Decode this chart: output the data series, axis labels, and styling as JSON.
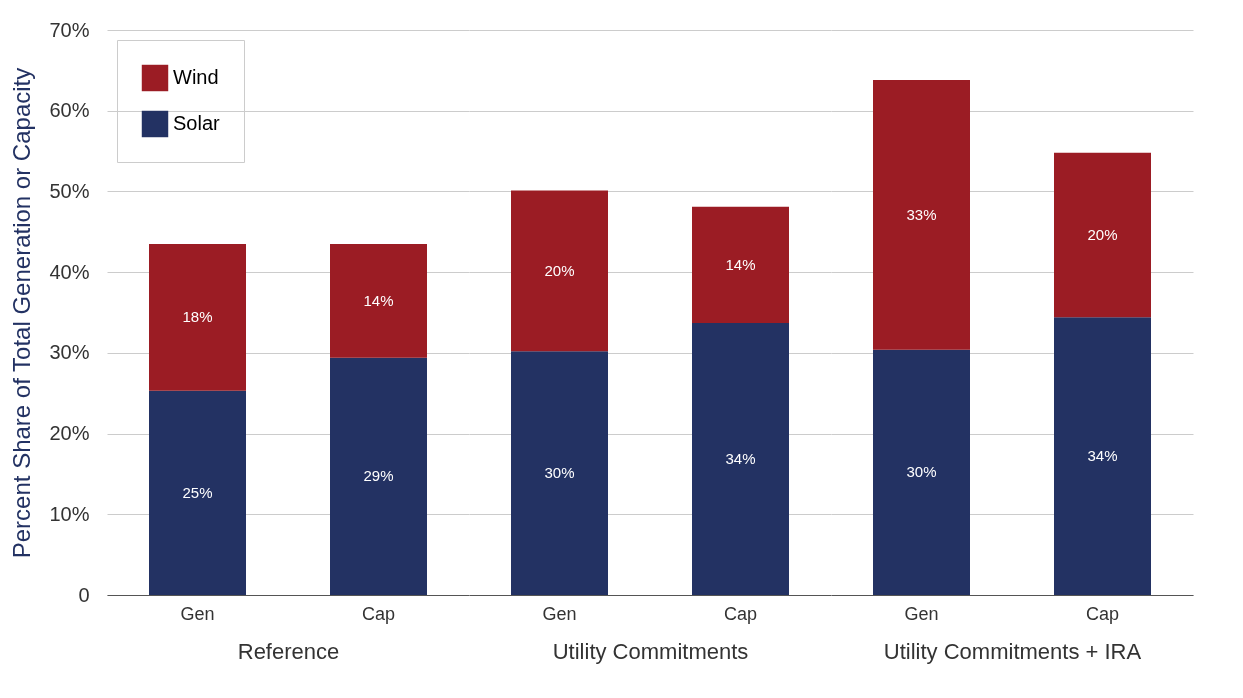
{
  "chart_data": {
    "type": "bar",
    "stacked": true,
    "ylabel": "Percent Share of Total Generation or Capacity",
    "categories": [
      "Gen",
      "Cap",
      "Gen",
      "Cap",
      "Gen",
      "Cap"
    ],
    "annotations": [
      "Reference",
      "Utility Commitments",
      "Utility Commitments + IRA"
    ],
    "series": [
      {
        "name": "Solar",
        "color": "#233263",
        "values": [
          25.3,
          29.4,
          30.2,
          33.7,
          30.4,
          34.4
        ],
        "value_labels": [
          "25%",
          "29%",
          "30%",
          "34%",
          "30%",
          "34%"
        ]
      },
      {
        "name": "Wind",
        "color": "#9b1c24",
        "values": [
          18.2,
          14.1,
          19.9,
          14.4,
          33.4,
          20.4
        ],
        "value_labels": [
          "18%",
          "14%",
          "20%",
          "14%",
          "33%",
          "20%"
        ]
      }
    ],
    "ylim": [
      0,
      70
    ],
    "yticks": [
      0,
      {
        "value": 10,
        "label": "10%"
      },
      {
        "value": 20,
        "label": "20%"
      },
      {
        "value": 30,
        "label": "30%"
      },
      {
        "value": 40,
        "label": "40%"
      },
      {
        "value": 50,
        "label": "50%"
      },
      {
        "value": 60,
        "label": "60%"
      },
      {
        "value": 70,
        "label": "70%"
      }
    ],
    "grid": "y",
    "legend": "top left"
  }
}
